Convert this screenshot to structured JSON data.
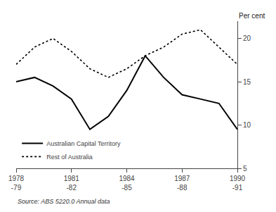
{
  "chart_data": {
    "type": "line",
    "categories": [
      "1978\n-79",
      null,
      null,
      "1981\n-82",
      null,
      null,
      "1984\n-85",
      null,
      null,
      "1987\n-88",
      null,
      null,
      "1990\n-91"
    ],
    "series": [
      {
        "name": "Australian Capital Territory",
        "color": "#000000",
        "line_style": "solid",
        "values": [
          15.0,
          15.5,
          14.5,
          13.0,
          9.5,
          11.0,
          14.0,
          18.0,
          15.5,
          13.5,
          13.0,
          12.5,
          9.5
        ]
      },
      {
        "name": "Rest of Australia",
        "color": "#000000",
        "line_style": "dotted",
        "values": [
          17.0,
          19.0,
          20.0,
          18.5,
          16.5,
          15.5,
          16.5,
          18.0,
          19.0,
          20.5,
          21.0,
          19.0,
          17.0
        ]
      }
    ],
    "y_label": "Per cent",
    "ylim": [
      5,
      22
    ],
    "yticks": [
      5,
      10,
      15,
      20
    ],
    "annotations": [
      {
        "text": "Source: ABS 5220.0 Annual data"
      }
    ],
    "grid": false,
    "legend": "lower left"
  }
}
